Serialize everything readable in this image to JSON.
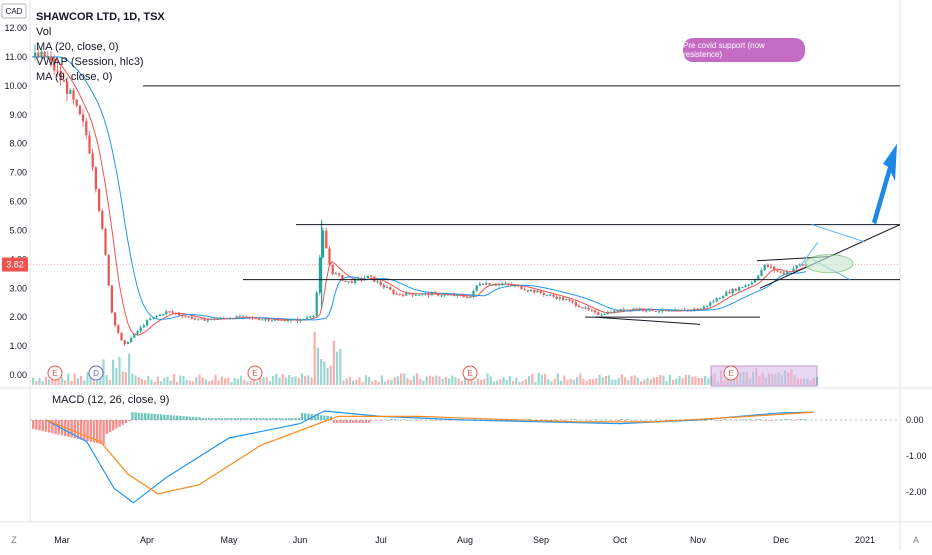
{
  "header": {
    "title": "SHAWCOR LTD, 1D, TSX",
    "indicators": [
      "Vol",
      "MA (20, close, 0)",
      "VWAP (Session, hlc3)",
      "MA (9, close, 0)"
    ],
    "currency": "CAD",
    "price_label": "3.82",
    "macd_label": "MACD (12, 26, close, 9)"
  },
  "annotation": {
    "text": "Pre covid support (now resistence)"
  },
  "event_markers": [
    "E",
    "D",
    "E",
    "E",
    "E"
  ],
  "corner_labels": {
    "left": "Z",
    "right": "A"
  },
  "colors": {
    "up": "#26a69a",
    "down": "#ef5350",
    "ma20": "#ef5350",
    "ma9": "#2196f3",
    "macd": "#2196f3",
    "signal": "#ff8a1f",
    "callout": "#c46cc4",
    "box": "#8e44ad"
  },
  "chart_data": [
    {
      "type": "candlestick",
      "title": "SHAWCOR LTD, 1D, TSX",
      "x_ticks": [
        "Mar",
        "Apr",
        "May",
        "Jun",
        "Jul",
        "Aug",
        "Sep",
        "Oct",
        "Nov",
        "Dec",
        "2021"
      ],
      "y_ticks": [
        "12.00",
        "11.00",
        "10.00",
        "9.00",
        "8.00",
        "7.00",
        "6.00",
        "5.00",
        "4.00",
        "3.00",
        "2.00",
        "1.00",
        "0.00"
      ],
      "ylim": [
        0,
        12
      ],
      "series": [
        {
          "name": "Price",
          "keypoints": [
            {
              "x": "Feb 24",
              "y": 11.0
            },
            {
              "x": "Mar 03",
              "y": 9.8
            },
            {
              "x": "Mar 09",
              "y": 8.5
            },
            {
              "x": "Mar 12",
              "y": 7.2
            },
            {
              "x": "Mar 16",
              "y": 4.5
            },
            {
              "x": "Mar 19",
              "y": 2.0
            },
            {
              "x": "Mar 23",
              "y": 1.0
            },
            {
              "x": "Mar 26",
              "y": 1.3
            },
            {
              "x": "Apr 01",
              "y": 1.9
            },
            {
              "x": "Apr 08",
              "y": 2.2
            },
            {
              "x": "Apr 20",
              "y": 1.9
            },
            {
              "x": "May 05",
              "y": 2.0
            },
            {
              "x": "May 20",
              "y": 1.9
            },
            {
              "x": "Jun 01",
              "y": 1.9
            },
            {
              "x": "Jun 06",
              "y": 2.1
            },
            {
              "x": "Jun 09",
              "y": 5.0
            },
            {
              "x": "Jun 12",
              "y": 3.6
            },
            {
              "x": "Jun 18",
              "y": 3.2
            },
            {
              "x": "Jun 26",
              "y": 3.4
            },
            {
              "x": "Jul 06",
              "y": 2.8
            },
            {
              "x": "Jul 20",
              "y": 2.8
            },
            {
              "x": "Aug 03",
              "y": 2.7
            },
            {
              "x": "Aug 06",
              "y": 3.2
            },
            {
              "x": "Aug 20",
              "y": 3.1
            },
            {
              "x": "Sep 10",
              "y": 2.6
            },
            {
              "x": "Sep 22",
              "y": 2.1
            },
            {
              "x": "Oct 05",
              "y": 2.3
            },
            {
              "x": "Oct 20",
              "y": 2.2
            },
            {
              "x": "Nov 02",
              "y": 2.3
            },
            {
              "x": "Nov 10",
              "y": 2.8
            },
            {
              "x": "Nov 20",
              "y": 3.2
            },
            {
              "x": "Nov 25",
              "y": 3.8
            },
            {
              "x": "Dec 01",
              "y": 3.5
            },
            {
              "x": "Dec 08",
              "y": 3.8
            },
            {
              "x": "Dec 14",
              "y": 3.82
            }
          ]
        }
      ],
      "levels": [
        10.0,
        5.2,
        3.3,
        2.0
      ],
      "last_price": 3.82
    },
    {
      "type": "line",
      "title": "MACD (12, 26, close, 9)",
      "y_ticks": [
        "0.00",
        "-1.00",
        "-2.00"
      ],
      "ylim": [
        -2.4,
        0.3
      ],
      "series": [
        {
          "name": "MACD",
          "keypoints": [
            {
              "x": "Feb 24",
              "y": 0.0
            },
            {
              "x": "Mar 10",
              "y": -0.6
            },
            {
              "x": "Mar 20",
              "y": -1.9
            },
            {
              "x": "Mar 27",
              "y": -2.3
            },
            {
              "x": "Apr 08",
              "y": -1.6
            },
            {
              "x": "May 01",
              "y": -0.5
            },
            {
              "x": "Jun 01",
              "y": -0.1
            },
            {
              "x": "Jun 10",
              "y": 0.25
            },
            {
              "x": "Jul 01",
              "y": 0.1
            },
            {
              "x": "Aug 01",
              "y": 0.0
            },
            {
              "x": "Sep 01",
              "y": -0.05
            },
            {
              "x": "Oct 01",
              "y": -0.1
            },
            {
              "x": "Nov 01",
              "y": 0.0
            },
            {
              "x": "Dec 01",
              "y": 0.2
            },
            {
              "x": "Dec 14",
              "y": 0.22
            }
          ]
        },
        {
          "name": "Signal",
          "keypoints": [
            {
              "x": "Feb 24",
              "y": 0.0
            },
            {
              "x": "Mar 15",
              "y": -0.6
            },
            {
              "x": "Mar 25",
              "y": -1.5
            },
            {
              "x": "Apr 05",
              "y": -2.05
            },
            {
              "x": "Apr 20",
              "y": -1.8
            },
            {
              "x": "May 15",
              "y": -0.7
            },
            {
              "x": "Jun 15",
              "y": 0.1
            },
            {
              "x": "Jul 15",
              "y": 0.1
            },
            {
              "x": "Aug 15",
              "y": 0.02
            },
            {
              "x": "Sep 15",
              "y": -0.05
            },
            {
              "x": "Oct 15",
              "y": -0.05
            },
            {
              "x": "Nov 15",
              "y": 0.08
            },
            {
              "x": "Dec 14",
              "y": 0.22
            }
          ]
        }
      ]
    }
  ]
}
